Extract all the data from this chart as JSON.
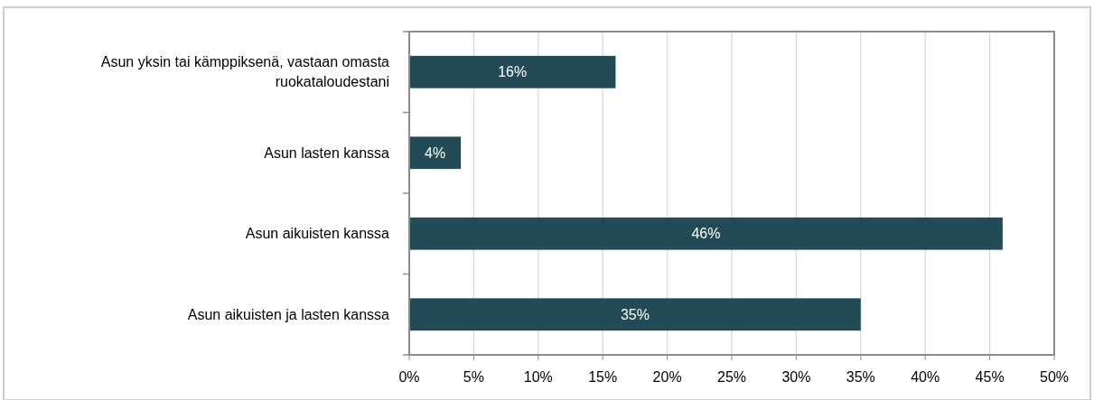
{
  "chart_data": {
    "type": "bar",
    "orientation": "horizontal",
    "categories": [
      "Asun yksin tai kämppiksenä, vastaan omasta ruokataloudestani",
      "Asun lasten kanssa",
      "Asun aikuisten kanssa",
      "Asun aikuisten ja lasten kanssa"
    ],
    "values": [
      16,
      4,
      46,
      35
    ],
    "value_labels": [
      "16%",
      "4%",
      "46%",
      "35%"
    ],
    "color": "#234b57",
    "xlim": [
      0,
      50
    ],
    "xticks": [
      {
        "value": 0,
        "label": "0%"
      },
      {
        "value": 5,
        "label": "5%"
      },
      {
        "value": 10,
        "label": "10%"
      },
      {
        "value": 15,
        "label": "15%"
      },
      {
        "value": 20,
        "label": "20%"
      },
      {
        "value": 25,
        "label": "25%"
      },
      {
        "value": 30,
        "label": "30%"
      },
      {
        "value": 35,
        "label": "35%"
      },
      {
        "value": 40,
        "label": "40%"
      },
      {
        "value": 45,
        "label": "45%"
      },
      {
        "value": 50,
        "label": "50%"
      }
    ],
    "grid": "x"
  }
}
